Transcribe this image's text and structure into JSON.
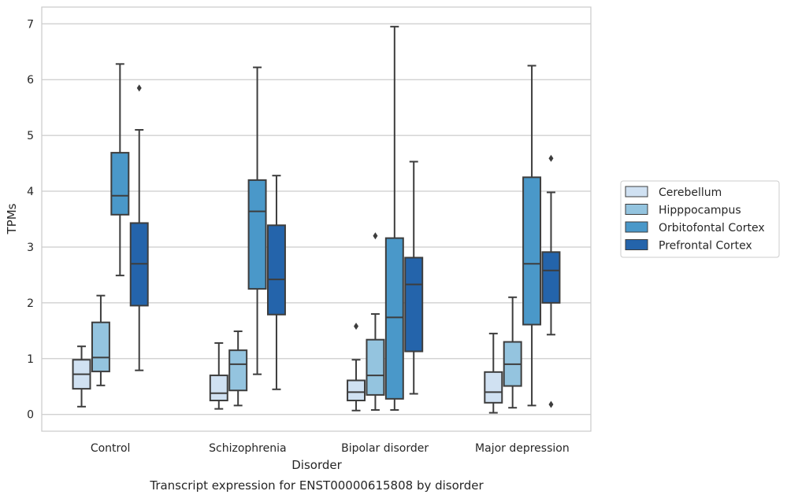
{
  "caption": "Transcript expression for ENST00000615808 by disorder",
  "chart_data": {
    "type": "box",
    "xlabel": "Disorder",
    "ylabel": "TPMs",
    "ylim": [
      -0.3,
      7.3
    ],
    "yticks": [
      "0",
      "1",
      "2",
      "3",
      "4",
      "5",
      "6",
      "7"
    ],
    "categories": [
      "Control",
      "Schizophrenia",
      "Bipolar disorder",
      "Major depression"
    ],
    "grid": "horizontal",
    "legend_position": "right",
    "series": [
      {
        "name": "Cerebellum",
        "color": "#d0e1f2",
        "boxes": [
          {
            "whislo": 0.14,
            "q1": 0.46,
            "med": 0.72,
            "q3": 0.98,
            "whishi": 1.22,
            "fliers": []
          },
          {
            "whislo": 0.1,
            "q1": 0.25,
            "med": 0.38,
            "q3": 0.7,
            "whishi": 1.28,
            "fliers": []
          },
          {
            "whislo": 0.07,
            "q1": 0.25,
            "med": 0.4,
            "q3": 0.61,
            "whishi": 0.98,
            "fliers": [
              1.58
            ]
          },
          {
            "whislo": 0.03,
            "q1": 0.21,
            "med": 0.4,
            "q3": 0.76,
            "whishi": 1.45,
            "fliers": []
          }
        ]
      },
      {
        "name": "Hipppocampus",
        "color": "#94c4df",
        "boxes": [
          {
            "whislo": 0.52,
            "q1": 0.77,
            "med": 1.02,
            "q3": 1.65,
            "whishi": 2.13,
            "fliers": []
          },
          {
            "whislo": 0.16,
            "q1": 0.43,
            "med": 0.9,
            "q3": 1.15,
            "whishi": 1.49,
            "fliers": []
          },
          {
            "whislo": 0.08,
            "q1": 0.35,
            "med": 0.7,
            "q3": 1.34,
            "whishi": 1.8,
            "fliers": [
              3.2
            ]
          },
          {
            "whislo": 0.12,
            "q1": 0.51,
            "med": 0.9,
            "q3": 1.3,
            "whishi": 2.1,
            "fliers": []
          }
        ]
      },
      {
        "name": "Orbitofontal Cortex",
        "color": "#4a98c9",
        "boxes": [
          {
            "whislo": 2.49,
            "q1": 3.58,
            "med": 3.92,
            "q3": 4.69,
            "whishi": 6.28,
            "fliers": []
          },
          {
            "whislo": 0.72,
            "q1": 2.25,
            "med": 3.64,
            "q3": 4.2,
            "whishi": 6.22,
            "fliers": []
          },
          {
            "whislo": 0.08,
            "q1": 0.28,
            "med": 1.74,
            "q3": 3.16,
            "whishi": 6.95,
            "fliers": []
          },
          {
            "whislo": 0.16,
            "q1": 1.61,
            "med": 2.7,
            "q3": 4.25,
            "whishi": 6.25,
            "fliers": []
          }
        ]
      },
      {
        "name": "Prefrontal Cortex",
        "color": "#2464ab",
        "boxes": [
          {
            "whislo": 0.79,
            "q1": 1.95,
            "med": 2.7,
            "q3": 3.43,
            "whishi": 5.1,
            "fliers": [
              5.85
            ]
          },
          {
            "whislo": 0.45,
            "q1": 1.79,
            "med": 2.42,
            "q3": 3.39,
            "whishi": 4.28,
            "fliers": []
          },
          {
            "whislo": 0.37,
            "q1": 1.13,
            "med": 2.33,
            "q3": 2.81,
            "whishi": 4.53,
            "fliers": []
          },
          {
            "whislo": 1.43,
            "q1": 2.0,
            "med": 2.58,
            "q3": 2.91,
            "whishi": 3.98,
            "fliers": [
              4.59,
              0.18
            ]
          }
        ]
      }
    ]
  }
}
